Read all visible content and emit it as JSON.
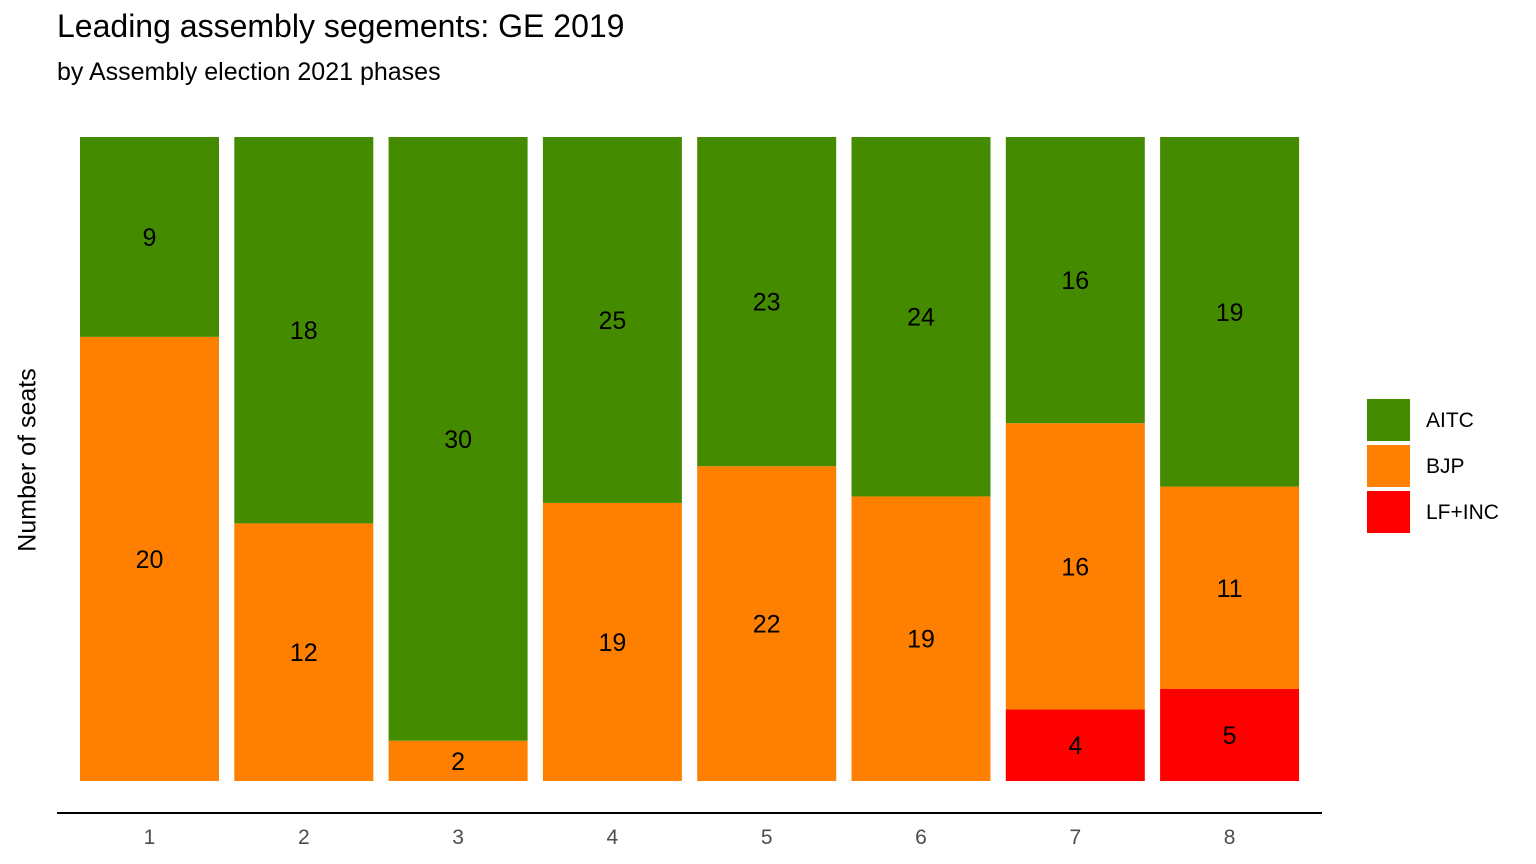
{
  "chart_data": {
    "type": "bar",
    "stacked": true,
    "normalized": true,
    "title": "Leading assembly segements: GE 2019",
    "subtitle": "by  Assembly election 2021 phases",
    "xlabel": "",
    "ylabel": "Number of seats",
    "categories": [
      "1",
      "2",
      "3",
      "4",
      "5",
      "6",
      "7",
      "8"
    ],
    "series": [
      {
        "name": "LF+INC",
        "color": "#FF0000",
        "values": [
          0,
          0,
          0,
          0,
          0,
          0,
          4,
          5
        ]
      },
      {
        "name": "BJP",
        "color": "#FF8000",
        "values": [
          20,
          12,
          2,
          19,
          22,
          19,
          16,
          11
        ]
      },
      {
        "name": "AITC",
        "color": "#458B00",
        "values": [
          9,
          18,
          30,
          25,
          23,
          24,
          16,
          19
        ]
      }
    ],
    "legend": {
      "position": "right",
      "order": [
        "AITC",
        "BJP",
        "LF+INC"
      ]
    },
    "grid": false
  }
}
